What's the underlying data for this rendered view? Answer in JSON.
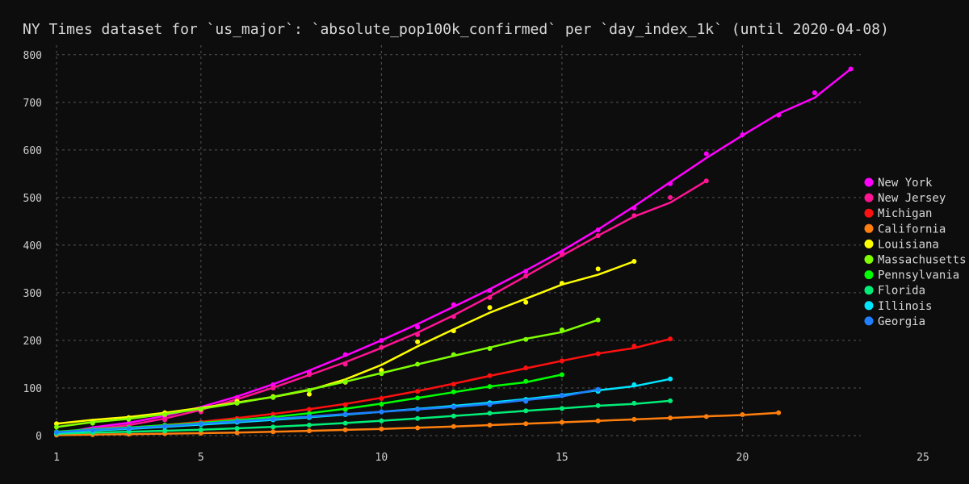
{
  "chart_data": {
    "type": "line",
    "title": "NY Times dataset for `us_major`: `absolute_pop100k_confirmed` per `day_index_1k` (until 2020-04-08)",
    "xlabel": "",
    "ylabel": "",
    "xlim": [
      1,
      25
    ],
    "ylim": [
      0,
      820
    ],
    "x_ticks": [
      1,
      5,
      10,
      15,
      20,
      25
    ],
    "y_ticks": [
      0,
      100,
      200,
      300,
      400,
      500,
      600,
      700,
      800
    ],
    "grid": true,
    "legend_position": "right",
    "series": [
      {
        "name": "New York",
        "color": "#ff00ff",
        "x": [
          1,
          2,
          3,
          4,
          5,
          6,
          7,
          8,
          9,
          10,
          11,
          12,
          13,
          14,
          15,
          16,
          17,
          18,
          19,
          20,
          21,
          22,
          23
        ],
        "y": [
          3,
          14,
          26,
          38,
          57,
          80,
          107,
          132,
          170,
          200,
          228,
          275,
          305,
          345,
          385,
          432,
          478,
          529,
          592,
          632,
          673,
          720,
          770
        ]
      },
      {
        "name": "New Jersey",
        "color": "#ff1493",
        "x": [
          1,
          2,
          3,
          4,
          5,
          6,
          7,
          8,
          9,
          10,
          11,
          12,
          13,
          14,
          15,
          16,
          17,
          18,
          19
        ],
        "y": [
          2,
          10,
          20,
          33,
          50,
          75,
          100,
          128,
          150,
          185,
          212,
          250,
          290,
          335,
          380,
          420,
          462,
          500,
          535
        ]
      },
      {
        "name": "Michigan",
        "color": "#ff1010",
        "x": [
          1,
          2,
          3,
          4,
          5,
          6,
          7,
          8,
          9,
          10,
          11,
          12,
          13,
          14,
          15,
          16,
          17,
          18
        ],
        "y": [
          5,
          10,
          16,
          22,
          28,
          36,
          45,
          55,
          65,
          78,
          93,
          108,
          126,
          142,
          157,
          172,
          188,
          203
        ]
      },
      {
        "name": "California",
        "color": "#ff7f0e",
        "x": [
          1,
          2,
          3,
          4,
          5,
          6,
          7,
          8,
          9,
          10,
          11,
          12,
          13,
          14,
          15,
          16,
          17,
          18,
          19,
          20,
          21
        ],
        "y": [
          1,
          2,
          3,
          4,
          5,
          6,
          8,
          10,
          12,
          14,
          16,
          19,
          22,
          25,
          28,
          31,
          34,
          37,
          40,
          44,
          48
        ]
      },
      {
        "name": "Louisiana",
        "color": "#ffff00",
        "x": [
          1,
          2,
          3,
          4,
          5,
          6,
          7,
          8,
          9,
          10,
          11,
          12,
          13,
          14,
          15,
          16,
          17
        ],
        "y": [
          25,
          30,
          38,
          48,
          55,
          72,
          82,
          87,
          112,
          137,
          197,
          220,
          269,
          280,
          320,
          350,
          366
        ]
      },
      {
        "name": "Massachusetts",
        "color": "#7fff00",
        "x": [
          1,
          2,
          3,
          4,
          5,
          6,
          7,
          8,
          9,
          10,
          11,
          12,
          13,
          14,
          15,
          16
        ],
        "y": [
          18,
          26,
          34,
          44,
          56,
          68,
          80,
          95,
          113,
          130,
          150,
          170,
          183,
          202,
          222,
          243
        ]
      },
      {
        "name": "Pennsylvania",
        "color": "#00ff00",
        "x": [
          1,
          2,
          3,
          4,
          5,
          6,
          7,
          8,
          9,
          10,
          11,
          12,
          13,
          14,
          15
        ],
        "y": [
          8,
          12,
          17,
          22,
          26,
          32,
          38,
          46,
          55,
          66,
          79,
          92,
          103,
          114,
          128
        ]
      },
      {
        "name": "Florida",
        "color": "#00ee77",
        "x": [
          1,
          2,
          3,
          4,
          5,
          6,
          7,
          8,
          9,
          10,
          11,
          12,
          13,
          14,
          15,
          16,
          17,
          18
        ],
        "y": [
          4,
          6,
          8,
          10,
          12,
          15,
          18,
          22,
          26,
          31,
          36,
          41,
          47,
          52,
          57,
          63,
          68,
          73
        ]
      },
      {
        "name": "Illinois",
        "color": "#00e5ff",
        "x": [
          1,
          2,
          3,
          4,
          5,
          6,
          7,
          8,
          9,
          10,
          11,
          12,
          13,
          14,
          15,
          16,
          17,
          18
        ],
        "y": [
          6,
          10,
          14,
          18,
          23,
          28,
          33,
          38,
          44,
          50,
          56,
          62,
          69,
          76,
          84,
          93,
          107,
          119
        ]
      },
      {
        "name": "Georgia",
        "color": "#1e7fff",
        "x": [
          1,
          2,
          3,
          4,
          5,
          6,
          7,
          8,
          9,
          10,
          11,
          12,
          13,
          14,
          15,
          16
        ],
        "y": [
          7,
          11,
          15,
          20,
          25,
          30,
          35,
          40,
          45,
          50,
          55,
          60,
          65,
          72,
          85,
          97
        ]
      }
    ]
  }
}
